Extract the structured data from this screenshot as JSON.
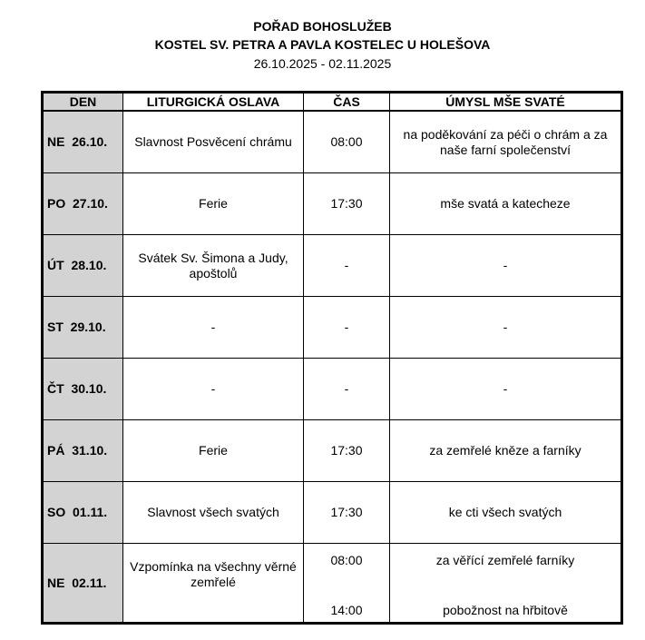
{
  "title": "POŘAD BOHOSLUŽEB",
  "subtitle": "KOSTEL SV. PETRA A PAVLA KOSTELEC U HOLEŠOVA",
  "date_range": "26.10.2025 - 02.11.2025",
  "columns": [
    "DEN",
    "LITURGICKÁ OSLAVA",
    "ČAS",
    "ÚMYSL MŠE SVATÉ"
  ],
  "rows": [
    {
      "day": "NE  26.10.",
      "celebration": "Slavnost Posvěcení chrámu",
      "time": "08:00",
      "intention": "na poděkování za péči o chrám a za naše farní společenství"
    },
    {
      "day": "PO  27.10.",
      "celebration": "Ferie",
      "time": "17:30",
      "intention": "mše svatá a katecheze"
    },
    {
      "day": "ÚT  28.10.",
      "celebration": "Svátek Sv. Šimona a Judy, apoštolů",
      "time": "-",
      "intention": "-"
    },
    {
      "day": "ST  29.10.",
      "celebration": "-",
      "time": "-",
      "intention": "-"
    },
    {
      "day": "ČT  30.10.",
      "celebration": "-",
      "time": "-",
      "intention": "-"
    },
    {
      "day": "PÁ  31.10.",
      "celebration": "Ferie",
      "time": "17:30",
      "intention": "za zemřelé kněze a farníky"
    },
    {
      "day": "SO  01.11.",
      "celebration": "Slavnost všech svatých",
      "time": "17:30",
      "intention": "ke cti všech svatých"
    }
  ],
  "last_row": {
    "day": "NE  02.11.",
    "celebration": "Vzpomínka na všechny věrné zemřelé",
    "times": [
      "08:00",
      "14:00"
    ],
    "intentions": [
      "za věřící zemřelé farníky",
      "pobožnost na hřbitově"
    ]
  }
}
